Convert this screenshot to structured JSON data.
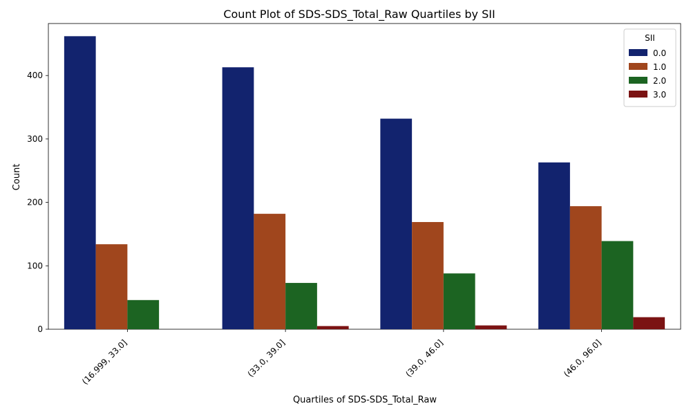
{
  "chart_data": {
    "type": "bar",
    "title": "Count Plot of SDS-SDS_Total_Raw Quartiles by SII",
    "xlabel": "Quartiles of SDS-SDS_Total_Raw",
    "ylabel": "Count",
    "categories": [
      "(16.999, 33.0]",
      "(33.0, 39.0]",
      "(39.0, 46.0]",
      "(46.0, 96.0]"
    ],
    "series": [
      {
        "name": "0.0",
        "color": "#12236e",
        "values": [
          462,
          413,
          332,
          263
        ]
      },
      {
        "name": "1.0",
        "color": "#a0461d",
        "values": [
          134,
          182,
          169,
          194
        ]
      },
      {
        "name": "2.0",
        "color": "#1c6422",
        "values": [
          46,
          73,
          88,
          139
        ]
      },
      {
        "name": "3.0",
        "color": "#7b1313",
        "values": [
          0,
          5,
          6,
          19
        ]
      }
    ],
    "ylim": [
      0,
      482
    ],
    "yticks": [
      0,
      100,
      200,
      300,
      400
    ],
    "legend": {
      "title": "SII",
      "placement": "top-right"
    },
    "grid": false
  }
}
